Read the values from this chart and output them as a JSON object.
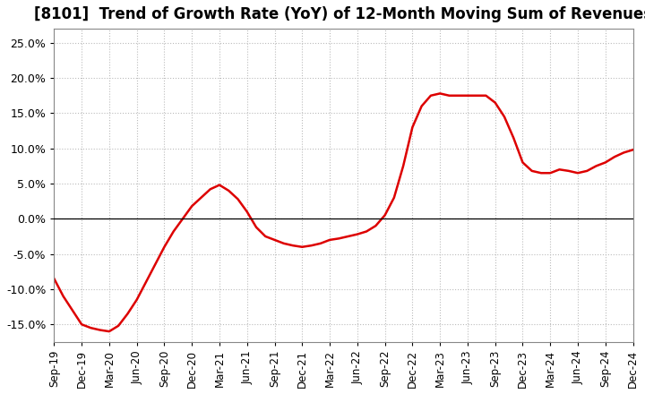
{
  "title": "[8101]  Trend of Growth Rate (YoY) of 12-Month Moving Sum of Revenues",
  "title_fontsize": 12,
  "line_color": "#dd0000",
  "background_color": "#ffffff",
  "grid_color": "#bbbbbb",
  "ylim": [
    -0.175,
    0.27
  ],
  "yticks": [
    -0.15,
    -0.1,
    -0.05,
    0.0,
    0.05,
    0.1,
    0.15,
    0.2,
    0.25
  ],
  "values": [
    -0.085,
    -0.11,
    -0.13,
    -0.15,
    -0.155,
    -0.158,
    -0.16,
    -0.152,
    -0.135,
    -0.115,
    -0.09,
    -0.065,
    -0.04,
    -0.018,
    0.0,
    0.018,
    0.03,
    0.042,
    0.048,
    0.04,
    0.028,
    0.01,
    -0.012,
    -0.025,
    -0.03,
    -0.035,
    -0.038,
    -0.04,
    -0.038,
    -0.035,
    -0.03,
    -0.028,
    -0.025,
    -0.022,
    -0.018,
    -0.01,
    0.005,
    0.03,
    0.075,
    0.13,
    0.16,
    0.175,
    0.178,
    0.175,
    0.175,
    0.175,
    0.175,
    0.175,
    0.165,
    0.145,
    0.115,
    0.08,
    0.068,
    0.065,
    0.065,
    0.07,
    0.068,
    0.065,
    0.068,
    0.075,
    0.08,
    0.088,
    0.094,
    0.098
  ],
  "xtick_labels": [
    "Sep-19",
    "Dec-19",
    "Mar-20",
    "Jun-20",
    "Sep-20",
    "Dec-20",
    "Mar-21",
    "Jun-21",
    "Sep-21",
    "Dec-21",
    "Mar-22",
    "Jun-22",
    "Sep-22",
    "Dec-22",
    "Mar-23",
    "Jun-23",
    "Sep-23",
    "Dec-23",
    "Mar-24",
    "Jun-24",
    "Sep-24",
    "Dec-24"
  ],
  "xtick_indices": [
    0,
    3,
    6,
    9,
    12,
    15,
    18,
    21,
    24,
    27,
    30,
    33,
    36,
    39,
    42,
    45,
    48,
    51,
    54,
    57,
    60,
    63
  ]
}
